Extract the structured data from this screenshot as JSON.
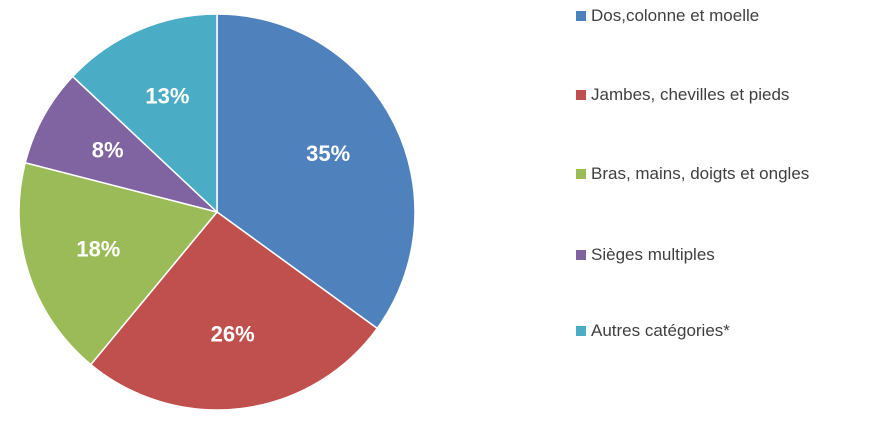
{
  "chart_data": {
    "type": "pie",
    "categories": [
      "Dos,colonne et moelle",
      "Jambes, chevilles et pieds",
      "Bras, mains, doigts et ongles",
      "Sièges multiples",
      "Autres catégories*"
    ],
    "values": [
      35,
      26,
      18,
      8,
      13
    ],
    "value_labels": [
      "35%",
      "26%",
      "18%",
      "8%",
      "13%"
    ],
    "colors": [
      "#4f81bd",
      "#c0504d",
      "#9bbb59",
      "#8064a2",
      "#4bacc6"
    ],
    "legend": "right"
  }
}
